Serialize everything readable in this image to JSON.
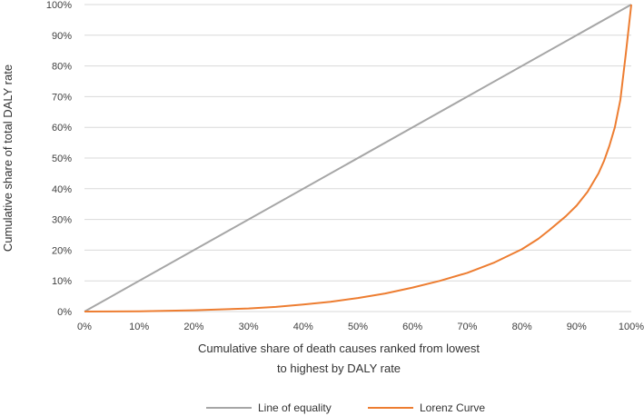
{
  "chart_data": {
    "type": "line",
    "title": "",
    "xlabel_lines": [
      "Cumulative share of death causes ranked from lowest",
      "to highest by DALY rate"
    ],
    "ylabel": "Cumulative share of total DALY rate",
    "xlim": [
      0,
      100
    ],
    "ylim": [
      0,
      100
    ],
    "x_ticks": [
      0,
      10,
      20,
      30,
      40,
      50,
      60,
      70,
      80,
      90,
      100
    ],
    "y_ticks": [
      0,
      10,
      20,
      30,
      40,
      50,
      60,
      70,
      80,
      90,
      100
    ],
    "x_tick_labels": [
      "0%",
      "10%",
      "20%",
      "30%",
      "40%",
      "50%",
      "60%",
      "70%",
      "80%",
      "90%",
      "100%"
    ],
    "y_tick_labels": [
      "0%",
      "10%",
      "20%",
      "30%",
      "40%",
      "50%",
      "60%",
      "70%",
      "80%",
      "90%",
      "100%"
    ],
    "grid": "horizontal",
    "legend_position": "bottom",
    "series": [
      {
        "name": "Line of equality",
        "color": "#a6a6a6",
        "points": [
          [
            0,
            0
          ],
          [
            100,
            100
          ]
        ]
      },
      {
        "name": "Lorenz Curve",
        "color": "#ed7d31",
        "points": [
          [
            0,
            0
          ],
          [
            10,
            0.1
          ],
          [
            20,
            0.4
          ],
          [
            30,
            1
          ],
          [
            35,
            1.5
          ],
          [
            40,
            2.3
          ],
          [
            45,
            3.2
          ],
          [
            50,
            4.4
          ],
          [
            55,
            5.9
          ],
          [
            60,
            7.8
          ],
          [
            65,
            10
          ],
          [
            70,
            12.6
          ],
          [
            75,
            16
          ],
          [
            80,
            20.3
          ],
          [
            83,
            23.7
          ],
          [
            85,
            26.5
          ],
          [
            88,
            31
          ],
          [
            90,
            34.5
          ],
          [
            92,
            39
          ],
          [
            94,
            45
          ],
          [
            95,
            49
          ],
          [
            96,
            54
          ],
          [
            97,
            60
          ],
          [
            98,
            69
          ],
          [
            99,
            84
          ],
          [
            100,
            100
          ]
        ]
      }
    ]
  }
}
